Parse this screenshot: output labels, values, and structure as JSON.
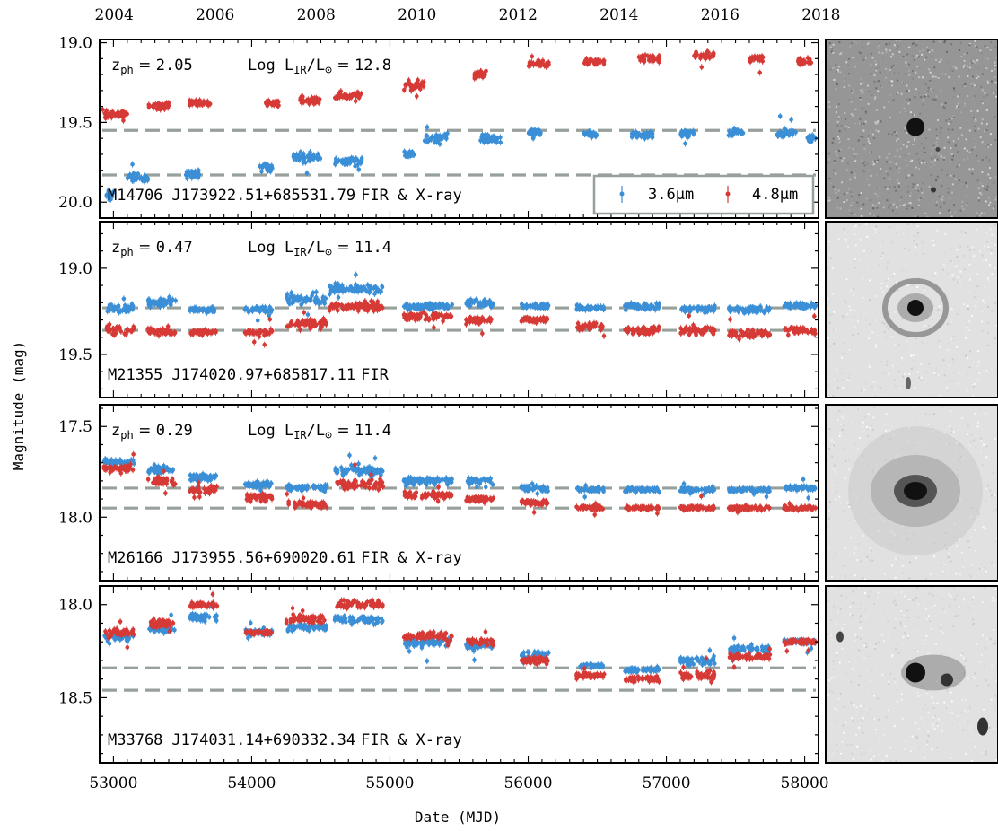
{
  "figure": {
    "xlabel": "Date (MJD)",
    "ylabel": "Magnitude (mag)",
    "top_axis_ticks": [
      "2004",
      "2006",
      "2008",
      "2010",
      "2012",
      "2014",
      "2016",
      "2018"
    ],
    "legend": {
      "labels": [
        "3.6μm",
        "4.8μm"
      ],
      "placement": "lower-right of first panel"
    },
    "colors": {
      "blue": "#3b8fd6",
      "red": "#d63a36",
      "dash": "#98a09c",
      "frame": "#000000"
    },
    "panels": [
      {
        "id": "M14706",
        "zph": "2.05",
        "loglir": "12.8",
        "label": {
          "id": "M14706",
          "coords": "J173922.51+685531.79",
          "tag": "FIR & X-ray"
        },
        "yticks": [
          "19.0",
          "19.5",
          "20.0"
        ]
      },
      {
        "id": "M21355",
        "zph": "0.47",
        "loglir": "11.4",
        "label": {
          "id": "M21355",
          "coords": "J174020.97+685817.11",
          "tag": "FIR"
        },
        "yticks": [
          "19.0",
          "19.5"
        ]
      },
      {
        "id": "M26166",
        "zph": "0.29",
        "loglir": "11.4",
        "label": {
          "id": "M26166",
          "coords": "J173955.56+690020.61",
          "tag": "FIR & X-ray"
        },
        "yticks": [
          "17.5",
          "18.0"
        ]
      },
      {
        "id": "M33768",
        "zph": "",
        "loglir": "",
        "label": {
          "id": "M33768",
          "coords": "J174031.14+690332.34",
          "tag": "FIR & X-ray"
        },
        "yticks": [
          "18.0",
          "18.5"
        ]
      }
    ]
  },
  "chart_data": [
    {
      "type": "scatter",
      "panel": "M14706",
      "xlim": [
        52900,
        58100
      ],
      "ylim": [
        20.1,
        18.98
      ],
      "y_inverted": true,
      "xticks": [
        53000,
        54000,
        55000,
        56000,
        57000,
        58000
      ],
      "top_xticks": [
        "2004",
        "2006",
        "2008",
        "2010",
        "2012",
        "2014",
        "2016",
        "2018"
      ],
      "yticks": [
        19.0,
        19.5,
        20.0
      ],
      "baselines": [
        19.55,
        19.83
      ],
      "annotations": [
        "zph = 2.05",
        "Log LIR/L⊙ = 12.8"
      ],
      "series": [
        {
          "name": "3.6μm",
          "color": "#3b8fd6",
          "segments": [
            [
              52950,
              53000,
              19.95,
              0.08
            ],
            [
              53100,
              53250,
              19.85,
              0.06
            ],
            [
              53500,
              53620,
              19.82,
              0.05
            ],
            [
              54050,
              54150,
              19.78,
              0.05
            ],
            [
              54300,
              54500,
              19.72,
              0.06
            ],
            [
              54600,
              54800,
              19.75,
              0.05
            ],
            [
              55100,
              55180,
              19.7,
              0.05
            ],
            [
              55250,
              55420,
              19.6,
              0.06
            ],
            [
              55650,
              55800,
              19.6,
              0.05
            ],
            [
              56000,
              56100,
              19.57,
              0.04
            ],
            [
              56400,
              56500,
              19.57,
              0.04
            ],
            [
              56750,
              56900,
              19.58,
              0.04
            ],
            [
              57100,
              57200,
              19.57,
              0.04
            ],
            [
              57450,
              57560,
              19.56,
              0.04
            ],
            [
              57800,
              57950,
              19.57,
              0.04
            ],
            [
              58020,
              58080,
              19.6,
              0.04
            ]
          ]
        },
        {
          "name": "4.8μm",
          "color": "#d63a36",
          "segments": [
            [
              52920,
              53100,
              19.45,
              0.06
            ],
            [
              53250,
              53400,
              19.4,
              0.04
            ],
            [
              53550,
              53700,
              19.38,
              0.04
            ],
            [
              54100,
              54200,
              19.38,
              0.04
            ],
            [
              54350,
              54500,
              19.36,
              0.05
            ],
            [
              54600,
              54800,
              19.33,
              0.04
            ],
            [
              55100,
              55250,
              19.27,
              0.05
            ],
            [
              55600,
              55700,
              19.2,
              0.04
            ],
            [
              56000,
              56150,
              19.13,
              0.04
            ],
            [
              56400,
              56550,
              19.12,
              0.04
            ],
            [
              56800,
              56950,
              19.1,
              0.04
            ],
            [
              57200,
              57350,
              19.08,
              0.04
            ],
            [
              57600,
              57700,
              19.1,
              0.04
            ],
            [
              57950,
              58050,
              19.12,
              0.04
            ]
          ]
        }
      ]
    },
    {
      "type": "scatter",
      "panel": "M21355",
      "xlim": [
        52900,
        58100
      ],
      "ylim": [
        19.75,
        18.73
      ],
      "y_inverted": true,
      "xticks": [
        53000,
        54000,
        55000,
        56000,
        57000,
        58000
      ],
      "yticks": [
        19.0,
        19.5
      ],
      "baselines": [
        19.23,
        19.36
      ],
      "annotations": [
        "zph = 0.47",
        "Log LIR/L⊙ = 11.4"
      ],
      "series": [
        {
          "name": "3.6μm",
          "color": "#3b8fd6",
          "segments": [
            [
              52950,
              53150,
              19.23,
              0.05
            ],
            [
              53250,
              53450,
              19.2,
              0.06
            ],
            [
              53550,
              53750,
              19.24,
              0.03
            ],
            [
              53950,
              54150,
              19.24,
              0.03
            ],
            [
              54250,
              54550,
              19.18,
              0.05
            ],
            [
              54550,
              54950,
              19.12,
              0.05
            ],
            [
              55100,
              55450,
              19.22,
              0.04
            ],
            [
              55550,
              55750,
              19.2,
              0.04
            ],
            [
              55950,
              56150,
              19.22,
              0.03
            ],
            [
              56350,
              56550,
              19.23,
              0.03
            ],
            [
              56700,
              56950,
              19.22,
              0.03
            ],
            [
              57100,
              57350,
              19.24,
              0.03
            ],
            [
              57450,
              57750,
              19.24,
              0.03
            ],
            [
              57850,
              58080,
              19.22,
              0.03
            ]
          ]
        },
        {
          "name": "4.8μm",
          "color": "#d63a36",
          "segments": [
            [
              52950,
              53150,
              19.36,
              0.04
            ],
            [
              53250,
              53450,
              19.37,
              0.04
            ],
            [
              53550,
              53750,
              19.37,
              0.03
            ],
            [
              53950,
              54150,
              19.37,
              0.03
            ],
            [
              54250,
              54550,
              19.32,
              0.04
            ],
            [
              54550,
              54950,
              19.22,
              0.05
            ],
            [
              55100,
              55450,
              19.28,
              0.04
            ],
            [
              55550,
              55750,
              19.3,
              0.04
            ],
            [
              55950,
              56150,
              19.3,
              0.03
            ],
            [
              56350,
              56550,
              19.34,
              0.04
            ],
            [
              56700,
              56950,
              19.36,
              0.04
            ],
            [
              57100,
              57350,
              19.36,
              0.04
            ],
            [
              57450,
              57750,
              19.38,
              0.04
            ],
            [
              57850,
              58080,
              19.36,
              0.04
            ]
          ]
        }
      ]
    },
    {
      "type": "scatter",
      "panel": "M26166",
      "xlim": [
        52900,
        58100
      ],
      "ylim": [
        18.35,
        17.38
      ],
      "y_inverted": true,
      "xticks": [
        53000,
        54000,
        55000,
        56000,
        57000,
        58000
      ],
      "yticks": [
        17.5,
        18.0
      ],
      "baselines": [
        17.84,
        17.95
      ],
      "annotations": [
        "zph = 0.29",
        "Log LIR/L⊙ = 11.4"
      ],
      "series": [
        {
          "name": "3.6μm",
          "color": "#3b8fd6",
          "segments": [
            [
              52930,
              53150,
              17.7,
              0.04
            ],
            [
              53250,
              53450,
              17.74,
              0.04
            ],
            [
              53550,
              53750,
              17.78,
              0.03
            ],
            [
              53950,
              54150,
              17.82,
              0.03
            ],
            [
              54250,
              54550,
              17.84,
              0.03
            ],
            [
              54600,
              54950,
              17.74,
              0.05
            ],
            [
              55100,
              55450,
              17.8,
              0.04
            ],
            [
              55550,
              55750,
              17.8,
              0.03
            ],
            [
              55950,
              56150,
              17.84,
              0.03
            ],
            [
              56350,
              56550,
              17.85,
              0.02
            ],
            [
              56700,
              56950,
              17.85,
              0.02
            ],
            [
              57100,
              57350,
              17.85,
              0.02
            ],
            [
              57450,
              57750,
              17.85,
              0.02
            ],
            [
              57850,
              58080,
              17.84,
              0.02
            ]
          ]
        },
        {
          "name": "4.8μm",
          "color": "#d63a36",
          "segments": [
            [
              52930,
              53150,
              17.73,
              0.04
            ],
            [
              53250,
              53450,
              17.8,
              0.04
            ],
            [
              53550,
              53750,
              17.85,
              0.04
            ],
            [
              53950,
              54150,
              17.89,
              0.04
            ],
            [
              54250,
              54550,
              17.93,
              0.03
            ],
            [
              54600,
              54950,
              17.82,
              0.05
            ],
            [
              55100,
              55450,
              17.88,
              0.03
            ],
            [
              55550,
              55750,
              17.9,
              0.03
            ],
            [
              55950,
              56150,
              17.92,
              0.03
            ],
            [
              56350,
              56550,
              17.95,
              0.02
            ],
            [
              56700,
              56950,
              17.95,
              0.02
            ],
            [
              57100,
              57350,
              17.95,
              0.02
            ],
            [
              57450,
              57750,
              17.95,
              0.02
            ],
            [
              57850,
              58080,
              17.95,
              0.02
            ]
          ]
        }
      ]
    },
    {
      "type": "scatter",
      "panel": "M33768",
      "xlim": [
        52900,
        58100
      ],
      "ylim": [
        18.85,
        17.9
      ],
      "y_inverted": true,
      "xticks": [
        53000,
        54000,
        55000,
        56000,
        57000,
        58000
      ],
      "yticks": [
        18.0,
        18.5
      ],
      "baselines": [
        18.34,
        18.46
      ],
      "annotations": [],
      "series": [
        {
          "name": "3.6μm",
          "color": "#3b8fd6",
          "segments": [
            [
              52930,
              53150,
              18.17,
              0.04
            ],
            [
              53250,
              53450,
              18.13,
              0.03
            ],
            [
              53550,
              53750,
              18.07,
              0.04
            ],
            [
              53950,
              54150,
              18.15,
              0.03
            ],
            [
              54250,
              54550,
              18.12,
              0.04
            ],
            [
              54600,
              54950,
              18.08,
              0.04
            ],
            [
              55100,
              55450,
              18.2,
              0.04
            ],
            [
              55550,
              55750,
              18.22,
              0.03
            ],
            [
              55950,
              56150,
              18.27,
              0.03
            ],
            [
              56350,
              56550,
              18.33,
              0.02
            ],
            [
              56700,
              56950,
              18.35,
              0.02
            ],
            [
              57100,
              57350,
              18.3,
              0.04
            ],
            [
              57450,
              57750,
              18.24,
              0.03
            ],
            [
              57850,
              58080,
              18.2,
              0.02
            ]
          ]
        },
        {
          "name": "4.8μm",
          "color": "#d63a36",
          "segments": [
            [
              52930,
              53150,
              18.15,
              0.04
            ],
            [
              53250,
              53450,
              18.1,
              0.04
            ],
            [
              53550,
              53750,
              18.0,
              0.03
            ],
            [
              53950,
              54150,
              18.15,
              0.02
            ],
            [
              54250,
              54550,
              18.08,
              0.04
            ],
            [
              54600,
              54950,
              18.0,
              0.04
            ],
            [
              55100,
              55450,
              18.17,
              0.04
            ],
            [
              55550,
              55750,
              18.2,
              0.03
            ],
            [
              55950,
              56150,
              18.3,
              0.03
            ],
            [
              56350,
              56550,
              18.38,
              0.03
            ],
            [
              56700,
              56950,
              18.4,
              0.03
            ],
            [
              57100,
              57350,
              18.38,
              0.05
            ],
            [
              57450,
              57750,
              18.28,
              0.03
            ],
            [
              57850,
              58080,
              18.2,
              0.02
            ]
          ]
        }
      ]
    }
  ]
}
